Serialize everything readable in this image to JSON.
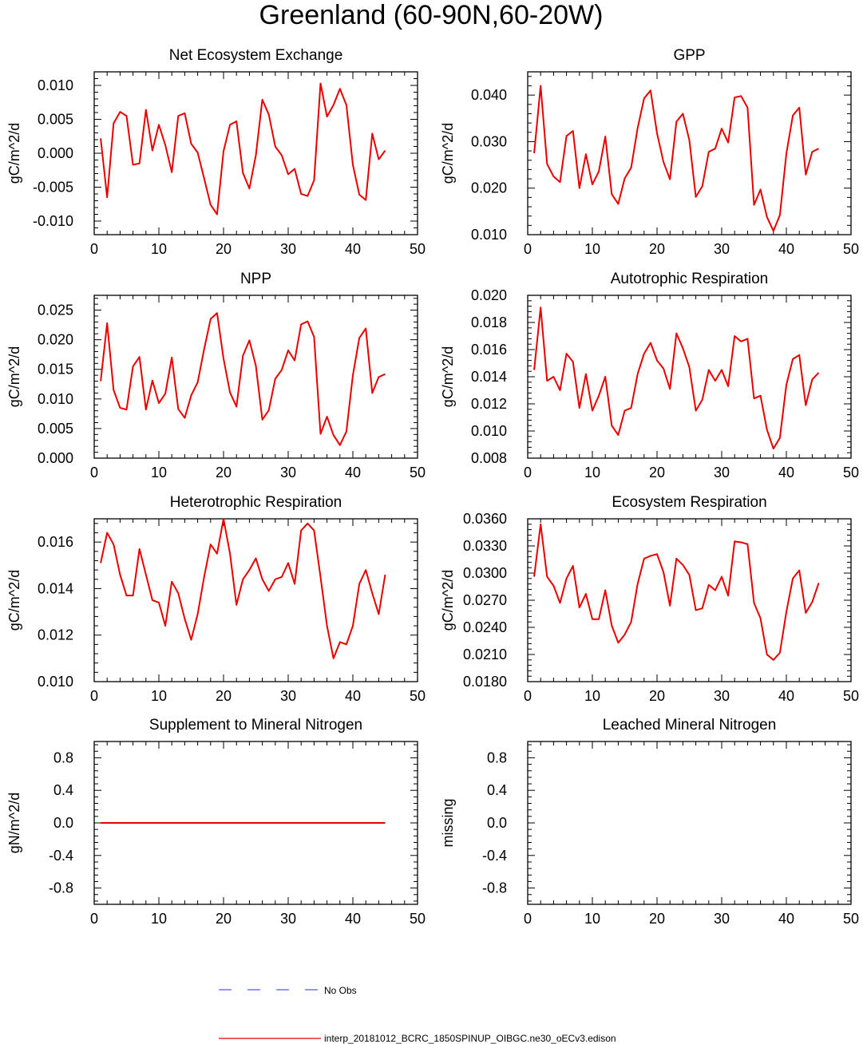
{
  "page_title": "Greenland (60-90N,60-20W)",
  "legend": {
    "obs_label": "No Obs",
    "obs_color": "#4f5fe0",
    "model_label": "interp_20181012_BCRC_1850SPINUP_OIBGC.ne30_oECv3.edison",
    "model_color": "#e60000"
  },
  "chart_data": [
    {
      "type": "line",
      "title": "Net Ecosystem Exchange",
      "ylabel": "gC/m^2/d",
      "xlim": [
        0,
        50
      ],
      "ylim": [
        -0.012,
        0.012
      ],
      "xticks": [
        0,
        10,
        20,
        30,
        40,
        50
      ],
      "yticks": [
        -0.01,
        -0.005,
        0.0,
        0.005,
        0.01
      ],
      "ytick_labels": [
        "-0.010",
        "-0.005",
        "0.000",
        "0.005",
        "0.010"
      ],
      "series": [
        {
          "x": [
            1,
            2,
            3,
            4,
            5,
            6,
            7,
            8,
            9,
            10,
            11,
            12,
            13,
            14,
            15,
            16,
            17,
            18,
            19,
            20,
            21,
            22,
            23,
            24,
            25,
            26,
            27,
            28,
            29,
            30,
            31,
            32,
            33,
            34,
            35,
            36,
            37,
            38,
            39,
            40,
            41,
            42,
            43,
            44,
            45
          ],
          "values": [
            0.0022,
            -0.0065,
            0.0044,
            0.0061,
            0.0055,
            -0.0017,
            -0.0015,
            0.0064,
            0.0004,
            0.0042,
            0.0012,
            -0.0028,
            0.0055,
            0.0059,
            0.0014,
            0.0001,
            -0.0037,
            -0.0076,
            -0.009,
            0.0003,
            0.0042,
            0.0047,
            -0.0029,
            -0.0052,
            -0.0003,
            0.0079,
            0.0057,
            0.001,
            -0.0003,
            -0.0031,
            -0.0023,
            -0.006,
            -0.0063,
            -0.004,
            0.0103,
            0.0054,
            0.0071,
            0.0095,
            0.0071,
            -0.0017,
            -0.0061,
            -0.0069,
            0.0029,
            -0.0009,
            0.0004
          ]
        }
      ]
    },
    {
      "type": "line",
      "title": "GPP",
      "ylabel": "gC/m^2/d",
      "xlim": [
        0,
        50
      ],
      "ylim": [
        0.01,
        0.045
      ],
      "xticks": [
        0,
        10,
        20,
        30,
        40,
        50
      ],
      "yticks": [
        0.01,
        0.02,
        0.03,
        0.04
      ],
      "ytick_labels": [
        "0.010",
        "0.020",
        "0.030",
        "0.040"
      ],
      "series": [
        {
          "x": [
            1,
            2,
            3,
            4,
            5,
            6,
            7,
            8,
            9,
            10,
            11,
            12,
            13,
            14,
            15,
            16,
            17,
            18,
            19,
            20,
            21,
            22,
            23,
            24,
            25,
            26,
            27,
            28,
            29,
            30,
            31,
            32,
            33,
            34,
            35,
            36,
            37,
            38,
            39,
            40,
            41,
            42,
            43,
            44,
            45
          ],
          "values": [
            0.0275,
            0.042,
            0.0252,
            0.0225,
            0.0213,
            0.0312,
            0.0323,
            0.02,
            0.0273,
            0.0208,
            0.0236,
            0.0311,
            0.0187,
            0.0166,
            0.0221,
            0.0244,
            0.0329,
            0.0393,
            0.041,
            0.0318,
            0.0256,
            0.0219,
            0.0343,
            0.036,
            0.0303,
            0.0181,
            0.0204,
            0.0278,
            0.0285,
            0.0328,
            0.0298,
            0.0395,
            0.0398,
            0.0373,
            0.0164,
            0.0197,
            0.0138,
            0.0108,
            0.0142,
            0.0274,
            0.0356,
            0.0373,
            0.0229,
            0.0278,
            0.0285
          ]
        }
      ]
    },
    {
      "type": "line",
      "title": "NPP",
      "ylabel": "gC/m^2/d",
      "xlim": [
        0,
        50
      ],
      "ylim": [
        0.0,
        0.0275
      ],
      "xticks": [
        0,
        10,
        20,
        30,
        40,
        50
      ],
      "yticks": [
        0.0,
        0.005,
        0.01,
        0.015,
        0.02,
        0.025
      ],
      "ytick_labels": [
        "0.000",
        "0.005",
        "0.010",
        "0.015",
        "0.020",
        "0.025"
      ],
      "series": [
        {
          "x": [
            1,
            2,
            3,
            4,
            5,
            6,
            7,
            8,
            9,
            10,
            11,
            12,
            13,
            14,
            15,
            16,
            17,
            18,
            19,
            20,
            21,
            22,
            23,
            24,
            25,
            26,
            27,
            28,
            29,
            30,
            31,
            32,
            33,
            34,
            35,
            36,
            37,
            38,
            39,
            40,
            41,
            42,
            43,
            44,
            45
          ],
          "values": [
            0.013,
            0.0228,
            0.0115,
            0.0085,
            0.0082,
            0.0155,
            0.0171,
            0.0082,
            0.0131,
            0.0093,
            0.0109,
            0.017,
            0.0083,
            0.0068,
            0.0106,
            0.0128,
            0.0184,
            0.0235,
            0.0245,
            0.0168,
            0.0111,
            0.0087,
            0.0173,
            0.0199,
            0.0156,
            0.0065,
            0.0081,
            0.0134,
            0.0149,
            0.0182,
            0.0165,
            0.0226,
            0.0231,
            0.0205,
            0.0041,
            0.007,
            0.0039,
            0.0022,
            0.0045,
            0.014,
            0.0203,
            0.0219,
            0.011,
            0.0137,
            0.0142
          ]
        }
      ]
    },
    {
      "type": "line",
      "title": "Autotrophic Respiration",
      "ylabel": "gC/m^2/d",
      "xlim": [
        0,
        50
      ],
      "ylim": [
        0.008,
        0.02
      ],
      "xticks": [
        0,
        10,
        20,
        30,
        40,
        50
      ],
      "yticks": [
        0.008,
        0.01,
        0.012,
        0.014,
        0.016,
        0.018,
        0.02
      ],
      "ytick_labels": [
        "0.008",
        "0.010",
        "0.012",
        "0.014",
        "0.016",
        "0.018",
        "0.020"
      ],
      "series": [
        {
          "x": [
            1,
            2,
            3,
            4,
            5,
            6,
            7,
            8,
            9,
            10,
            11,
            12,
            13,
            14,
            15,
            16,
            17,
            18,
            19,
            20,
            21,
            22,
            23,
            24,
            25,
            26,
            27,
            28,
            29,
            30,
            31,
            32,
            33,
            34,
            35,
            36,
            37,
            38,
            39,
            40,
            41,
            42,
            43,
            44,
            45
          ],
          "values": [
            0.0145,
            0.0191,
            0.0137,
            0.014,
            0.013,
            0.0157,
            0.0151,
            0.0117,
            0.0142,
            0.0115,
            0.0126,
            0.014,
            0.0104,
            0.0097,
            0.0115,
            0.0117,
            0.0142,
            0.0157,
            0.0165,
            0.0152,
            0.0146,
            0.0131,
            0.0172,
            0.0161,
            0.0147,
            0.0115,
            0.0123,
            0.0145,
            0.0137,
            0.0145,
            0.0133,
            0.017,
            0.0166,
            0.0168,
            0.0124,
            0.0126,
            0.0101,
            0.0087,
            0.0095,
            0.0134,
            0.0153,
            0.0156,
            0.0119,
            0.0138,
            0.0143
          ]
        }
      ]
    },
    {
      "type": "line",
      "title": "Heterotrophic Respiration",
      "ylabel": "gC/m^2/d",
      "xlim": [
        0,
        50
      ],
      "ylim": [
        0.01,
        0.017
      ],
      "xticks": [
        0,
        10,
        20,
        30,
        40,
        50
      ],
      "yticks": [
        0.01,
        0.012,
        0.014,
        0.016
      ],
      "ytick_labels": [
        "0.010",
        "0.012",
        "0.014",
        "0.016"
      ],
      "series": [
        {
          "x": [
            1,
            2,
            3,
            4,
            5,
            6,
            7,
            8,
            9,
            10,
            11,
            12,
            13,
            14,
            15,
            16,
            17,
            18,
            19,
            20,
            21,
            22,
            23,
            24,
            25,
            26,
            27,
            28,
            29,
            30,
            31,
            32,
            33,
            34,
            35,
            36,
            37,
            38,
            39,
            40,
            41,
            42,
            43,
            44,
            45
          ],
          "values": [
            0.0151,
            0.0164,
            0.0159,
            0.0146,
            0.0137,
            0.0137,
            0.0157,
            0.0146,
            0.0135,
            0.0134,
            0.0124,
            0.0143,
            0.0138,
            0.0127,
            0.0118,
            0.0129,
            0.0145,
            0.0159,
            0.0155,
            0.017,
            0.0155,
            0.0133,
            0.0144,
            0.0148,
            0.0153,
            0.0144,
            0.0139,
            0.0144,
            0.0145,
            0.0151,
            0.0142,
            0.0165,
            0.0168,
            0.0165,
            0.0145,
            0.0124,
            0.011,
            0.0117,
            0.0116,
            0.0124,
            0.0142,
            0.0148,
            0.0138,
            0.0129,
            0.0146
          ]
        }
      ]
    },
    {
      "type": "line",
      "title": "Ecosystem Respiration",
      "ylabel": "gC/m^2/d",
      "xlim": [
        0,
        50
      ],
      "ylim": [
        0.018,
        0.036
      ],
      "xticks": [
        0,
        10,
        20,
        30,
        40,
        50
      ],
      "yticks": [
        0.018,
        0.021,
        0.024,
        0.027,
        0.03,
        0.033,
        0.036
      ],
      "ytick_labels": [
        "0.0180",
        "0.0210",
        "0.0240",
        "0.0270",
        "0.0300",
        "0.0330",
        "0.0360"
      ],
      "series": [
        {
          "x": [
            1,
            2,
            3,
            4,
            5,
            6,
            7,
            8,
            9,
            10,
            11,
            12,
            13,
            14,
            15,
            16,
            17,
            18,
            19,
            20,
            21,
            22,
            23,
            24,
            25,
            26,
            27,
            28,
            29,
            30,
            31,
            32,
            33,
            34,
            35,
            36,
            37,
            38,
            39,
            40,
            41,
            42,
            43,
            44,
            45
          ],
          "values": [
            0.0296,
            0.0354,
            0.0296,
            0.0286,
            0.0267,
            0.0294,
            0.0308,
            0.0262,
            0.0277,
            0.0249,
            0.0249,
            0.0281,
            0.0242,
            0.0223,
            0.0232,
            0.0246,
            0.0288,
            0.0316,
            0.0319,
            0.0321,
            0.0301,
            0.0264,
            0.0316,
            0.0309,
            0.0298,
            0.0259,
            0.0261,
            0.0287,
            0.0281,
            0.0296,
            0.0275,
            0.0335,
            0.0334,
            0.0332,
            0.0267,
            0.025,
            0.021,
            0.0204,
            0.0212,
            0.0257,
            0.0294,
            0.0303,
            0.0256,
            0.0268,
            0.0289
          ]
        }
      ]
    },
    {
      "type": "line",
      "title": "Supplement to Mineral Nitrogen",
      "ylabel": "gN/m^2/d",
      "xlim": [
        0,
        50
      ],
      "ylim": [
        -1.0,
        1.0
      ],
      "xticks": [
        0,
        10,
        20,
        30,
        40,
        50
      ],
      "yticks": [
        -0.8,
        -0.4,
        0.0,
        0.4,
        0.8
      ],
      "ytick_labels": [
        "-0.8",
        "-0.4",
        "0.0",
        "0.4",
        "0.8"
      ],
      "series": [
        {
          "x": [
            1,
            45
          ],
          "values": [
            0.0,
            0.0
          ]
        }
      ]
    },
    {
      "type": "line",
      "title": "Leached Mineral Nitrogen",
      "ylabel": "missing",
      "xlim": [
        0,
        50
      ],
      "ylim": [
        -1.0,
        1.0
      ],
      "xticks": [
        0,
        10,
        20,
        30,
        40,
        50
      ],
      "yticks": [
        -0.8,
        -0.4,
        0.0,
        0.4,
        0.8
      ],
      "ytick_labels": [
        "-0.8",
        "-0.4",
        "0.0",
        "0.4",
        "0.8"
      ],
      "series": []
    }
  ]
}
